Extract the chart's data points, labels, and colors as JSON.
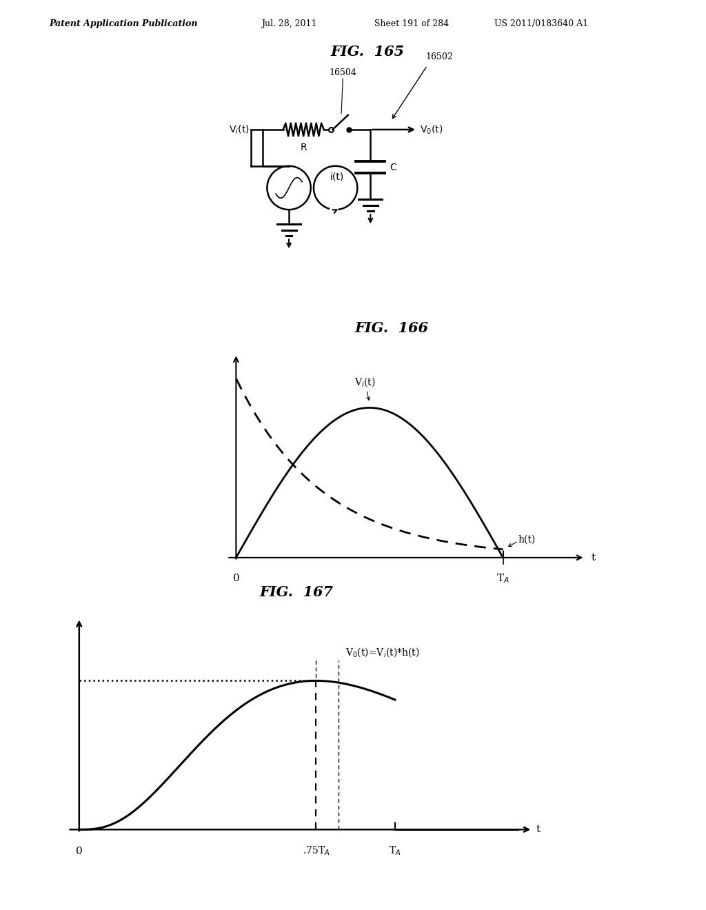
{
  "background_color": "#ffffff",
  "header_text": "Patent Application Publication",
  "header_date": "Jul. 28, 2011",
  "header_sheet": "Sheet 191 of 284",
  "header_patent": "US 2011/0183640 A1",
  "fig165_title": "FIG.  165",
  "fig166_title": "FIG.  166",
  "fig167_title": "FIG.  167"
}
